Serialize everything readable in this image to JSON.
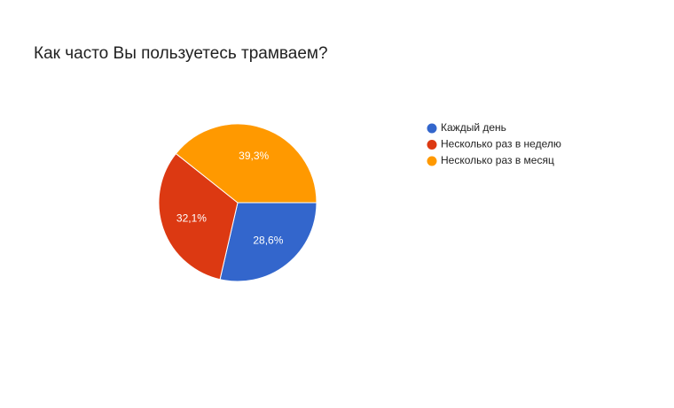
{
  "chart_data": {
    "type": "pie",
    "title": "Как часто Вы пользуетесь трамваем?",
    "categories": [
      "Каждый день",
      "Несколько раз в неделю",
      "Несколько раз в месяц"
    ],
    "values": [
      28.6,
      32.1,
      39.3
    ],
    "value_labels": [
      "28,6%",
      "32,1%",
      "39,3%"
    ],
    "colors": [
      "#3366cc",
      "#dc3912",
      "#ff9900"
    ],
    "legend": "right"
  }
}
